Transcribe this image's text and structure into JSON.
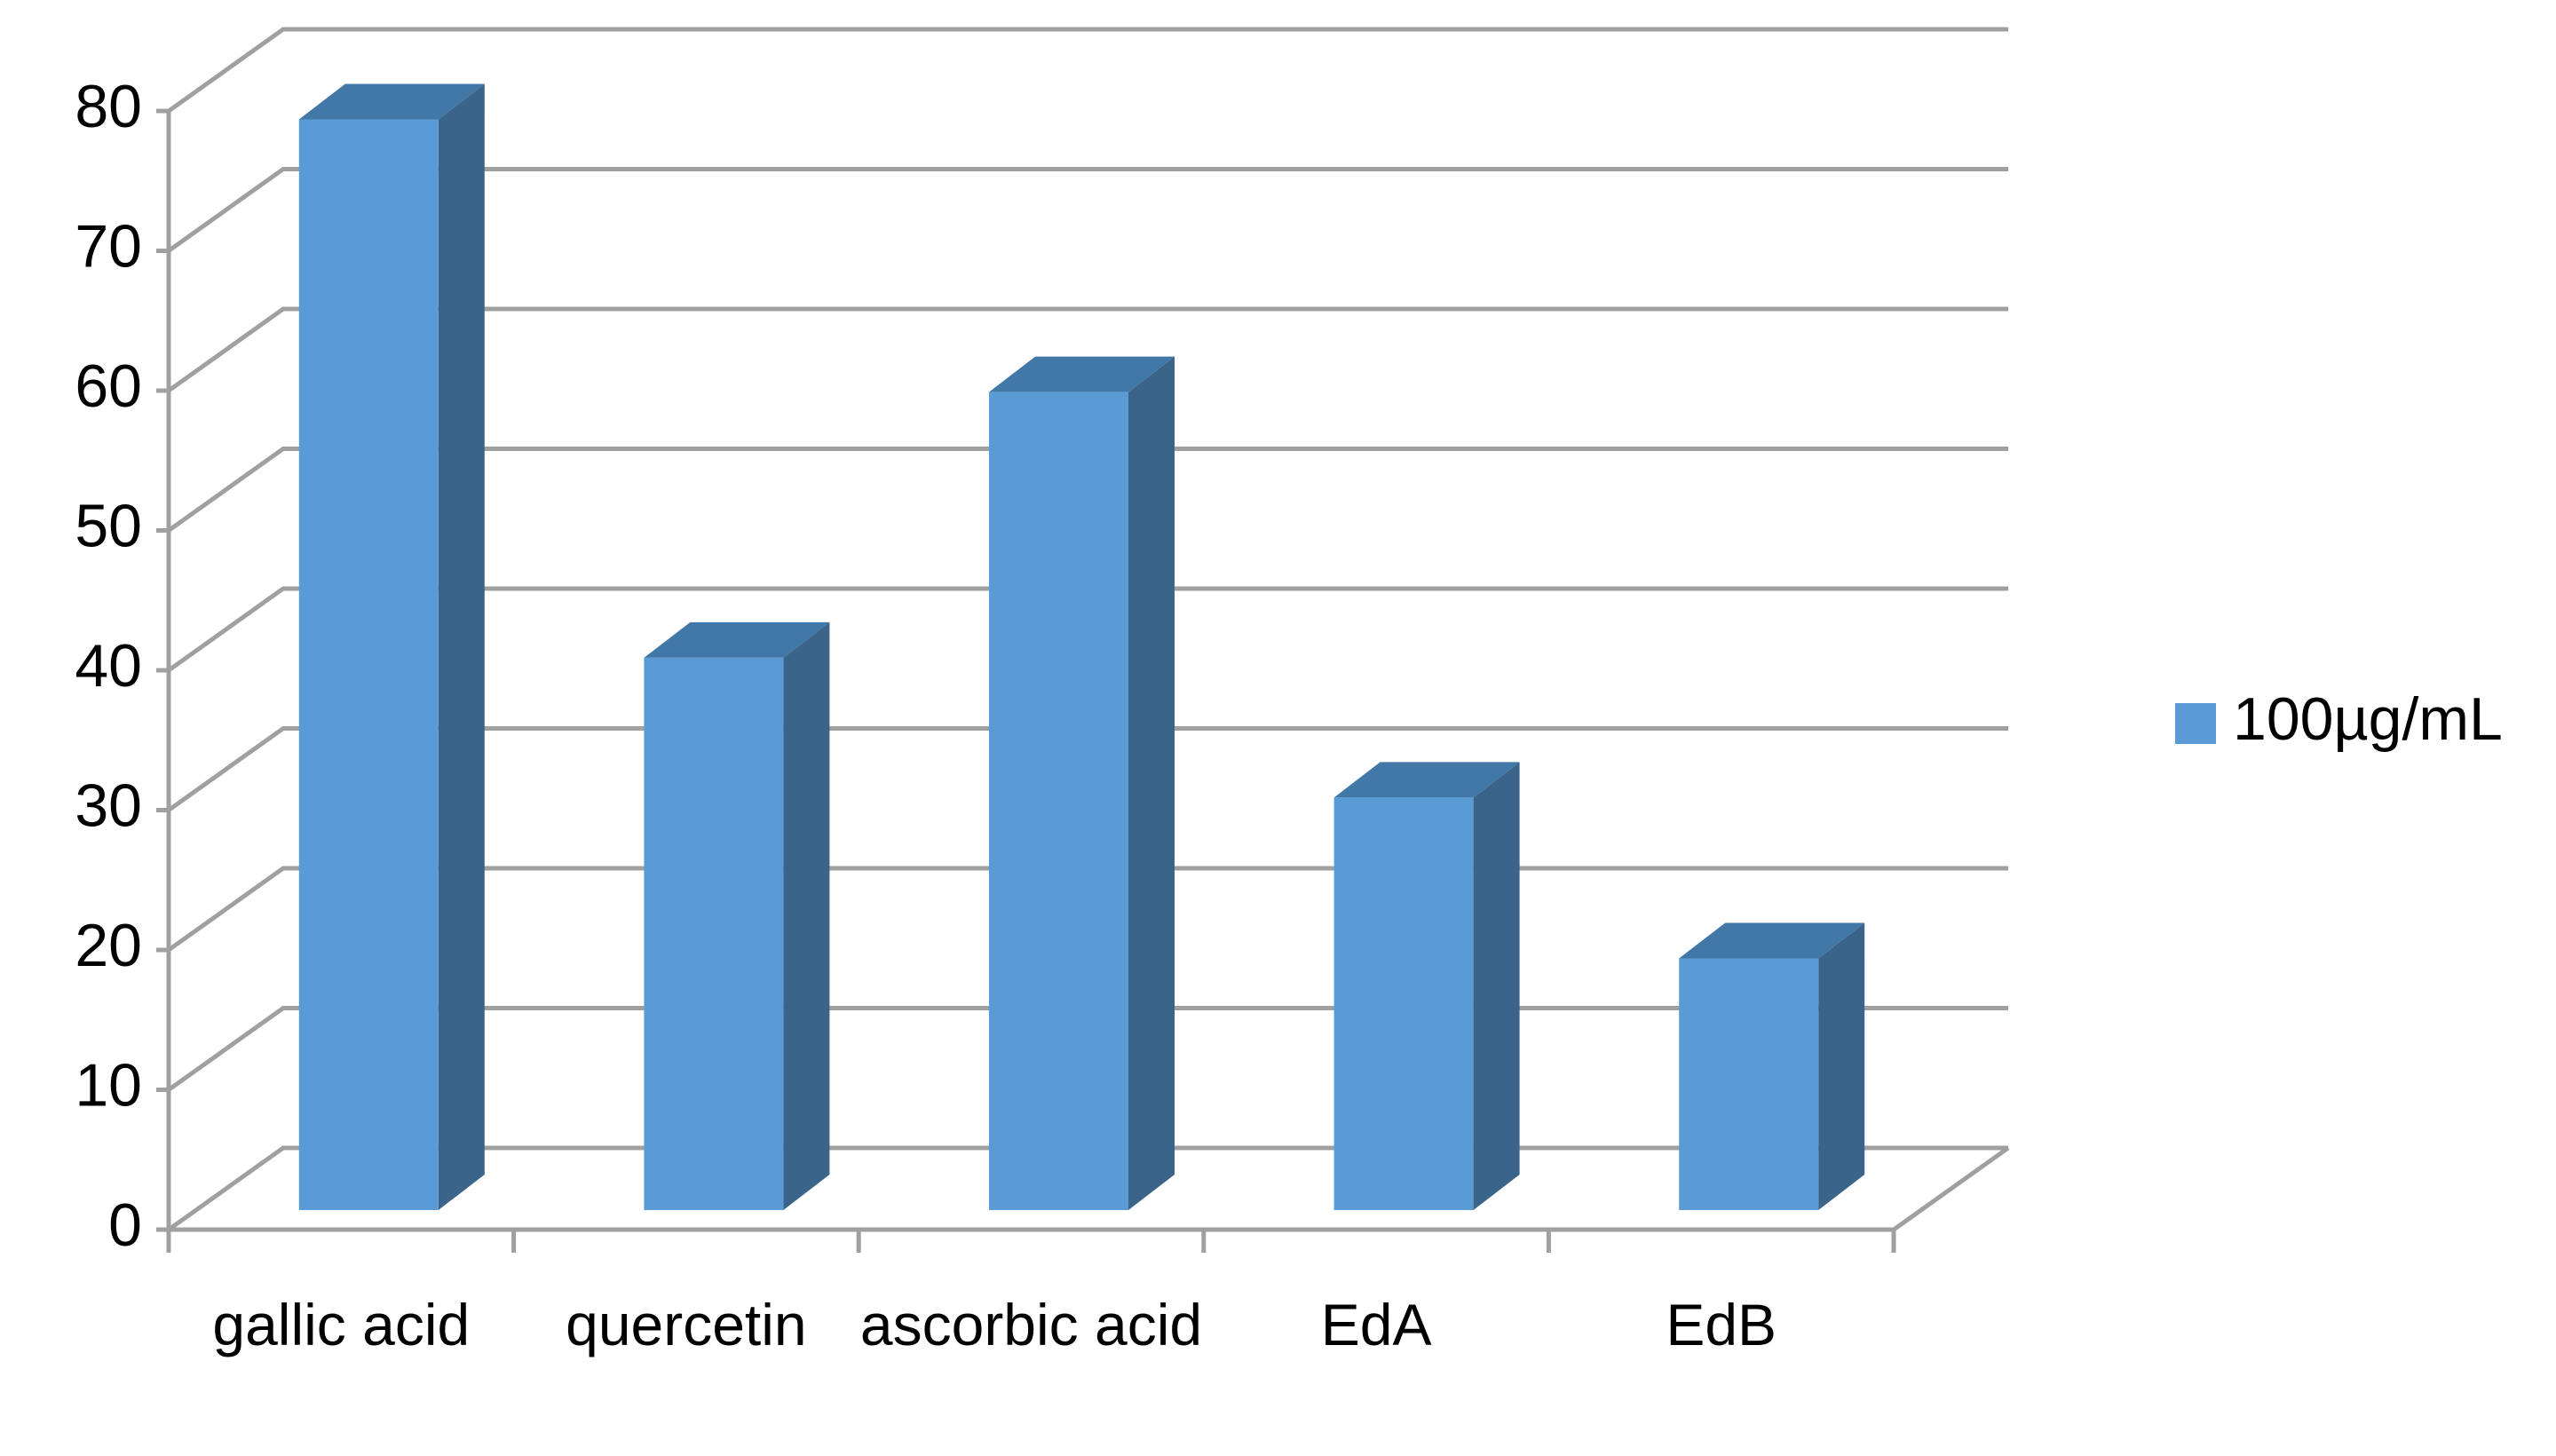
{
  "chart_data": {
    "type": "bar3d",
    "categories": [
      "gallic acid",
      "quercetin",
      "ascorbic acid",
      "EdA",
      "EdB"
    ],
    "series": [
      {
        "name": "100µg/mL",
        "color": "#5b9bd5",
        "values": [
          78,
          39.5,
          58.5,
          29.5,
          18
        ]
      }
    ],
    "ylim": [
      0,
      80
    ],
    "yticks": [
      0,
      10,
      20,
      30,
      40,
      50,
      60,
      70,
      80
    ],
    "grid": true,
    "legend": "right"
  }
}
